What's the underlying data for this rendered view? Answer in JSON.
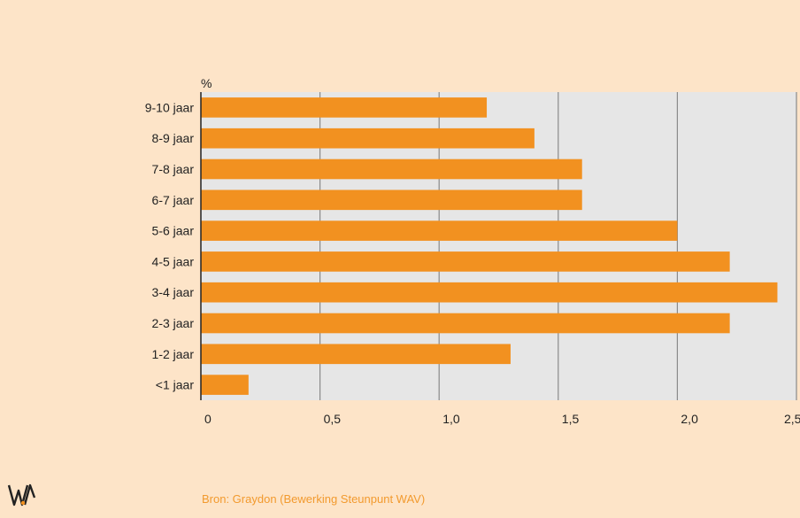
{
  "chart_data": {
    "type": "bar",
    "orientation": "horizontal",
    "unit_label": "%",
    "categories": [
      "9-10 jaar",
      "8-9 jaar",
      "7-8 jaar",
      "6-7 jaar",
      "5-6 jaar",
      "4-5 jaar",
      "3-4 jaar",
      "2-3 jaar",
      "1-2 jaar",
      "<1 jaar"
    ],
    "values": [
      1.2,
      1.4,
      1.6,
      1.6,
      2.0,
      2.22,
      2.42,
      2.22,
      1.3,
      0.2
    ],
    "xlim": [
      0,
      2.5
    ],
    "xticks": [
      0,
      0.5,
      1.0,
      1.5,
      2.0,
      2.5
    ],
    "xtick_labels": [
      "0",
      "0,5",
      "1,0",
      "1,5",
      "2,0",
      "2,5"
    ],
    "grid": "vertical",
    "bar_color": "#f29120",
    "plot_bg": "#e6e6e6",
    "page_bg": "#fde4c8"
  },
  "source": "Bron: Graydon (Bewerking Steunpunt WAV)",
  "logo": {
    "icon": "wav-logo-icon"
  }
}
